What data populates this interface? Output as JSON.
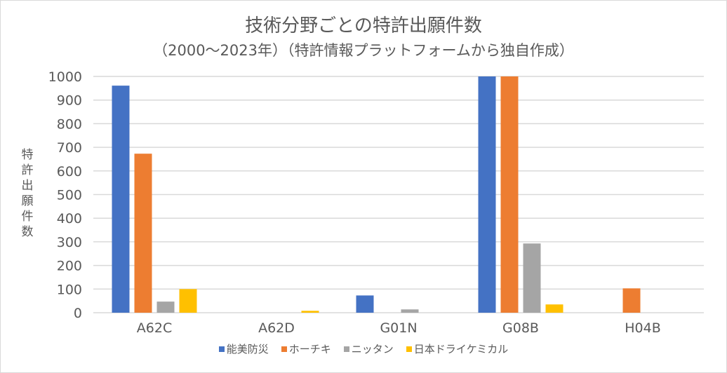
{
  "chart_data": {
    "type": "bar",
    "title": "技術分野ごとの特許出願件数",
    "subtitle": "（2000～2023年）（特許情報プラットフォームから独自作成）",
    "xlabel": "",
    "ylabel": "特許出願件数",
    "ylim": [
      0,
      1000
    ],
    "yticks": [
      0,
      100,
      200,
      300,
      400,
      500,
      600,
      700,
      800,
      900,
      1000
    ],
    "grid": true,
    "legend_position": "bottom",
    "categories": [
      "A62C",
      "A62D",
      "G01N",
      "G08B",
      "H04B"
    ],
    "series": [
      {
        "name": "能美防災",
        "color": "#4472c4",
        "values": [
          961,
          0,
          73,
          1000,
          0
        ]
      },
      {
        "name": "ホーチキ",
        "color": "#ed7d31",
        "values": [
          673,
          0,
          0,
          1000,
          103
        ]
      },
      {
        "name": "ニッタン",
        "color": "#a5a5a5",
        "values": [
          47,
          0,
          14,
          293,
          0
        ]
      },
      {
        "name": "日本ドライケミカル",
        "color": "#ffc000",
        "values": [
          100,
          8,
          0,
          35,
          0
        ]
      }
    ]
  }
}
